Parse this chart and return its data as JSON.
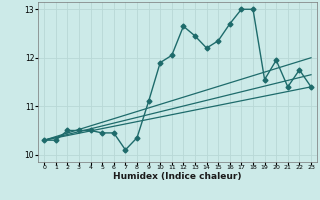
{
  "title": "",
  "xlabel": "Humidex (Indice chaleur)",
  "ylabel": "",
  "bg_color": "#cceae8",
  "line_color": "#1e6b6b",
  "grid_color": "#b8d8d6",
  "xlim": [
    -0.5,
    23.5
  ],
  "ylim": [
    9.85,
    13.15
  ],
  "yticks": [
    10,
    11,
    12,
    13
  ],
  "xticks": [
    0,
    1,
    2,
    3,
    4,
    5,
    6,
    7,
    8,
    9,
    10,
    11,
    12,
    13,
    14,
    15,
    16,
    17,
    18,
    19,
    20,
    21,
    22,
    23
  ],
  "series": [
    {
      "x": [
        0,
        1,
        2,
        3,
        4,
        5,
        6,
        7,
        8,
        9,
        10,
        11,
        12,
        13,
        14,
        15,
        16,
        17,
        18,
        19,
        20,
        21,
        22,
        23
      ],
      "y": [
        10.3,
        10.3,
        10.5,
        10.5,
        10.5,
        10.45,
        10.45,
        10.1,
        10.35,
        11.1,
        11.9,
        12.05,
        12.65,
        12.45,
        12.2,
        12.35,
        12.7,
        13.0,
        13.0,
        11.55,
        11.95,
        11.4,
        11.75,
        11.4
      ],
      "marker": "D",
      "markersize": 2.5,
      "linewidth": 1.0
    },
    {
      "x": [
        0,
        23
      ],
      "y": [
        10.3,
        11.4
      ],
      "marker": null,
      "linewidth": 0.9
    },
    {
      "x": [
        0,
        23
      ],
      "y": [
        10.3,
        11.65
      ],
      "marker": null,
      "linewidth": 0.9
    },
    {
      "x": [
        0,
        23
      ],
      "y": [
        10.3,
        12.0
      ],
      "marker": null,
      "linewidth": 0.9
    }
  ]
}
